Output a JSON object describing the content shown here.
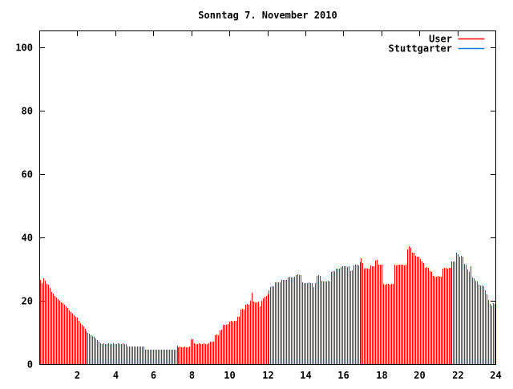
{
  "title": "Sonntag 7. November 2010",
  "legend": {
    "items": [
      {
        "label": "User",
        "color": "#ff0000"
      },
      {
        "label": "Stuttgarter",
        "color": "#1e7fd6"
      }
    ]
  },
  "chart_data": {
    "type": "bar",
    "style": "impulses",
    "title": "Sonntag 7. November 2010",
    "xlabel": "",
    "ylabel": "",
    "xlim": [
      0,
      24
    ],
    "ylim": [
      0,
      105
    ],
    "x_ticks": [
      2,
      4,
      6,
      8,
      10,
      12,
      14,
      16,
      18,
      20,
      22,
      24
    ],
    "y_ticks": [
      0,
      20,
      40,
      60,
      80,
      100
    ],
    "x_step_hours": 0.083333,
    "grid": false,
    "legend_position": "top-right",
    "series": [
      {
        "name": "User",
        "color": "#ff0000",
        "values": [
          26.5,
          25.6,
          27.0,
          26.3,
          25.2,
          25.0,
          24.1,
          22.8,
          22.3,
          21.6,
          21.0,
          20.5,
          20.1,
          19.6,
          19.2,
          18.7,
          18.2,
          17.6,
          17.0,
          16.4,
          15.9,
          15.4,
          15.0,
          14.6,
          13.6,
          13.0,
          12.4,
          11.8,
          11.2,
          10.4,
          9.9,
          9.6,
          9.2,
          8.8,
          8.5,
          8.1,
          7.6,
          7.1,
          6.6,
          6.4,
          6.5,
          6.4,
          6.4,
          6.5,
          6.4,
          6.4,
          6.5,
          6.4,
          6.4,
          6.5,
          6.4,
          6.4,
          6.5,
          6.4,
          6.4,
          5.6,
          5.6,
          5.5,
          5.6,
          5.5,
          5.6,
          5.5,
          5.6,
          5.5,
          5.6,
          5.5,
          4.6,
          4.5,
          4.6,
          4.5,
          4.6,
          4.5,
          4.6,
          4.5,
          4.5,
          4.6,
          4.5,
          4.5,
          4.6,
          4.5,
          4.5,
          4.6,
          4.5,
          4.5,
          4.6,
          4.5,
          5.9,
          5.4,
          5.5,
          5.4,
          5.4,
          5.5,
          5.4,
          5.4,
          5.5,
          7.8,
          7.9,
          6.5,
          6.4,
          6.4,
          6.5,
          6.4,
          6.4,
          6.5,
          6.4,
          6.4,
          6.5,
          7.0,
          7.1,
          7.0,
          9.2,
          9.3,
          9.2,
          10.6,
          10.8,
          12.3,
          12.5,
          12.4,
          12.6,
          13.4,
          13.6,
          13.5,
          13.7,
          13.6,
          15.0,
          14.9,
          17.2,
          17.4,
          17.3,
          18.7,
          18.9,
          18.8,
          20.1,
          22.5,
          19.8,
          19.6,
          19.5,
          19.7,
          18.3,
          19.9,
          20.8,
          21.2,
          21.6,
          21.9,
          23.3,
          24.4,
          24.6,
          24.5,
          25.7,
          25.9,
          25.8,
          25.7,
          26.5,
          26.7,
          26.6,
          26.5,
          27.3,
          27.5,
          27.4,
          27.3,
          27.5,
          28.1,
          28.3,
          28.2,
          28.1,
          25.7,
          25.5,
          25.6,
          25.5,
          25.7,
          25.6,
          25.5,
          24.2,
          25.6,
          27.8,
          28.0,
          27.9,
          26.3,
          26.1,
          26.2,
          26.1,
          26.3,
          26.2,
          29.2,
          29.4,
          29.3,
          30.0,
          30.2,
          30.1,
          30.7,
          30.9,
          30.8,
          30.9,
          30.7,
          30.8,
          29.4,
          29.5,
          31.2,
          31.4,
          31.3,
          31.2,
          32.2,
          33.4,
          32.0,
          30.1,
          30.3,
          30.2,
          30.1,
          31.1,
          30.9,
          31.0,
          32.7,
          33.0,
          31.5,
          31.3,
          31.4,
          25.3,
          25.1,
          25.2,
          25.3,
          25.1,
          25.2,
          25.3,
          31.4,
          31.2,
          31.3,
          31.5,
          31.3,
          31.4,
          31.2,
          31.5,
          36.2,
          37.3,
          36.8,
          35.3,
          35.1,
          34.2,
          33.9,
          34.0,
          33.2,
          32.3,
          31.9,
          30.4,
          30.6,
          30.3,
          29.4,
          29.2,
          27.8,
          27.6,
          27.7,
          27.8,
          27.6,
          27.7,
          30.2,
          30.4,
          30.3,
          30.2,
          30.4,
          30.3,
          32.3,
          32.5,
          32.4,
          35.3,
          34.6,
          33.9,
          34.1,
          33.8,
          31.6,
          31.4,
          29.9,
          29.0,
          30.9,
          27.4,
          27.2,
          26.3,
          26.1,
          25.1,
          24.8,
          24.9,
          24.6,
          23.4,
          21.9,
          20.3,
          19.1,
          18.4,
          19.3,
          18.9,
          18.4
        ]
      },
      {
        "name": "Stuttgarter",
        "color": "#1e7fd6",
        "values": []
      }
    ]
  }
}
